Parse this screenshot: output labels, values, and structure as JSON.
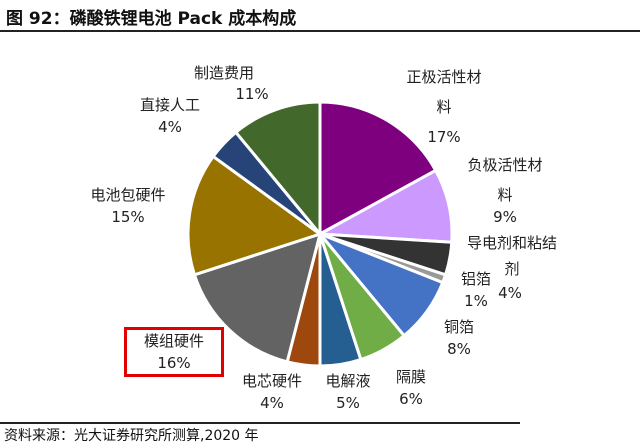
{
  "title": "图 92：磷酸铁锂电池 Pack 成本构成",
  "source": "资料来源：光大证券研究所测算,2020 年",
  "chart_data": {
    "type": "pie",
    "title": "图 92：磷酸铁锂电池 Pack 成本构成",
    "start": "12 o'clock, clockwise",
    "highlighted": "模组硬件",
    "slices": [
      {
        "label": "正极活性材料",
        "value": 17,
        "text": "17%",
        "color": "#7f007f"
      },
      {
        "label": "负极活性材料",
        "value": 9,
        "text": "9%",
        "color": "#cc99ff"
      },
      {
        "label": "导电剂和粘结剂",
        "value": 4,
        "text": "4%",
        "color": "#333333"
      },
      {
        "label": "铝箔",
        "value": 1,
        "text": "1%",
        "color": "#999999"
      },
      {
        "label": "铜箔",
        "value": 8,
        "text": "8%",
        "color": "#4472c4"
      },
      {
        "label": "隔膜",
        "value": 6,
        "text": "6%",
        "color": "#70ad47"
      },
      {
        "label": "电解液",
        "value": 5,
        "text": "5%",
        "color": "#255e91"
      },
      {
        "label": "电芯硬件",
        "value": 4,
        "text": "4%",
        "color": "#9e480e"
      },
      {
        "label": "模组硬件",
        "value": 16,
        "text": "16%",
        "color": "#636363"
      },
      {
        "label": "电池包硬件",
        "value": 15,
        "text": "15%",
        "color": "#997300"
      },
      {
        "label": "直接人工",
        "value": 4,
        "text": "4%",
        "color": "#264478"
      },
      {
        "label": "制造费用",
        "value": 11,
        "text": "11%",
        "color": "#43682b"
      }
    ]
  }
}
